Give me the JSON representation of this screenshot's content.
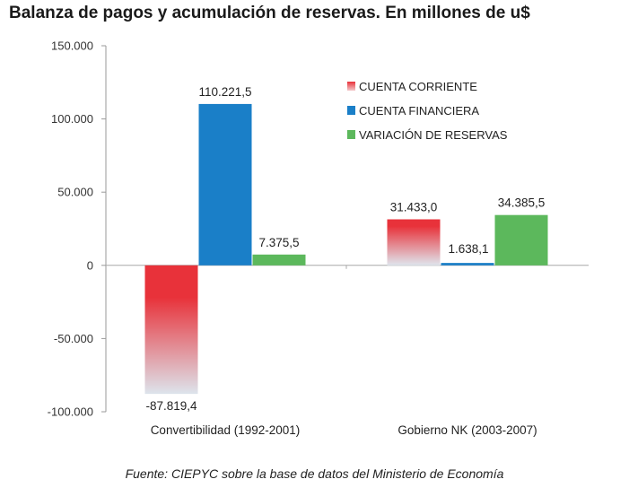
{
  "chart_data": {
    "type": "bar",
    "title": "Balanza de pagos y acumulación de reservas. En millones de u$",
    "categories": [
      "Convertibilidad (1992-2001)",
      "Gobierno NK (2003-2007)"
    ],
    "series": [
      {
        "name": "CUENTA CORRIENTE",
        "values": [
          -87819.4,
          31433.0
        ],
        "labels": [
          "-87.819,4",
          "31.433,0"
        ],
        "color": "#e8323a"
      },
      {
        "name": "CUENTA FINANCIERA",
        "values": [
          110221.5,
          1638.1
        ],
        "labels": [
          "110.221,5",
          "1.638,1"
        ],
        "color": "#1a7fc8"
      },
      {
        "name": "VARIACIÓN DE RESERVAS",
        "values": [
          7375.5,
          34385.5
        ],
        "labels": [
          "7.375,5",
          "34.385,5"
        ],
        "color": "#5cb85c"
      }
    ],
    "ylim": [
      -100000,
      150000
    ],
    "yticks": [
      150000,
      100000,
      50000,
      0,
      -50000,
      -100000
    ],
    "ytick_labels": [
      "150.000",
      "100.000",
      "50.000",
      "0",
      "-50.000",
      "-100.000"
    ],
    "xlabel": "",
    "ylabel": "",
    "legend_position": "top-right",
    "grid": false
  },
  "source": "Fuente: CIEPYC sobre la base de datos del Ministerio de Economía"
}
